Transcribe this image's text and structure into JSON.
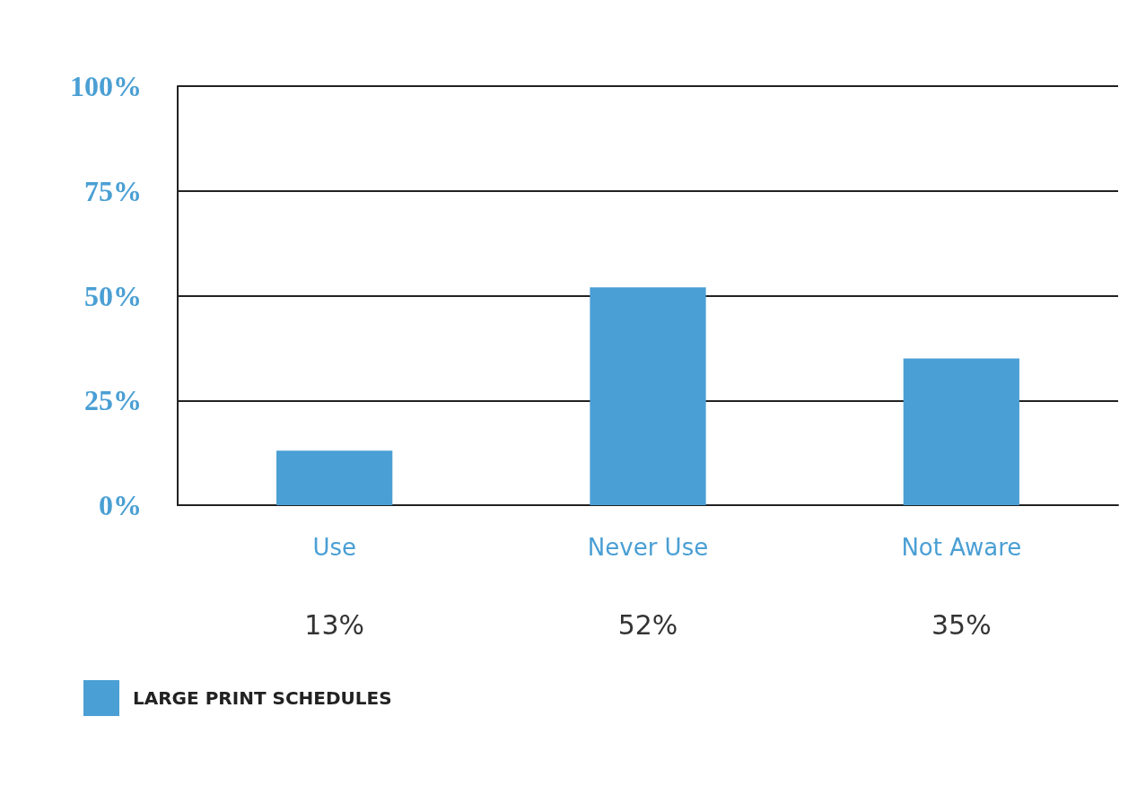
{
  "chart_data": {
    "type": "bar",
    "categories": [
      "Use",
      "Never Use",
      "Not Aware"
    ],
    "series": [
      {
        "name": "LARGE PRINT SCHEDULES",
        "color": "#4a9fd4",
        "values": [
          13,
          52,
          35
        ],
        "value_labels": [
          "13%",
          "52%",
          "35%"
        ]
      }
    ],
    "ylim": [
      0,
      100
    ],
    "yticks": [
      {
        "value": 0,
        "label": "0%"
      },
      {
        "value": 25,
        "label": "25%"
      },
      {
        "value": 50,
        "label": "50%"
      },
      {
        "value": 75,
        "label": "75%"
      },
      {
        "value": 100,
        "label": "100%"
      }
    ],
    "grid": "y",
    "legend": "bottom left"
  }
}
